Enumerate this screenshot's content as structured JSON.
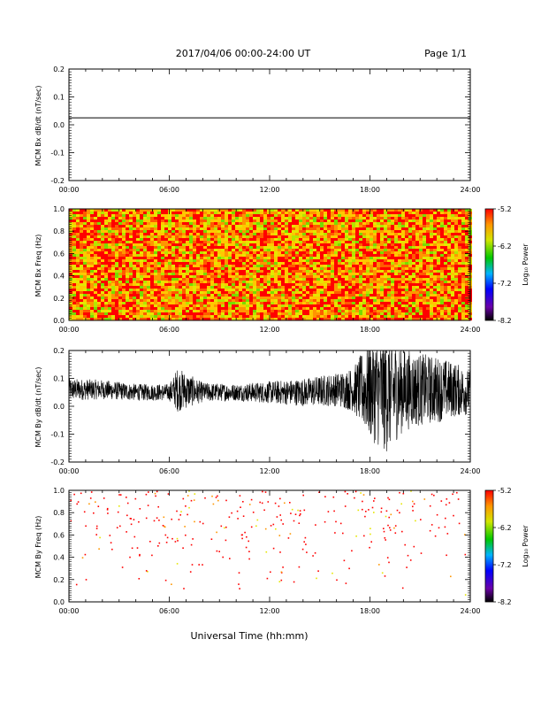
{
  "header": {
    "title": "2017/04/06  00:00-24:00 UT",
    "page": "Page 1/1"
  },
  "xlabel": "Universal Time (hh:mm)",
  "colorbar": {
    "label": "Log₁₀ Power",
    "ticks": [
      "-5.2",
      "-6.2",
      "-7.2",
      "-8.2"
    ]
  },
  "chart_data": [
    {
      "type": "line",
      "ylabel": "MCM Bx dB/dt (nT/sec)",
      "xlim": [
        0,
        24
      ],
      "ylim": [
        -0.2,
        0.2
      ],
      "xticks": [
        "00:00",
        "06:00",
        "12:00",
        "18:00",
        "24:00"
      ],
      "yticks": [
        "-0.2",
        "-0.1",
        "0.0",
        "0.1",
        "0.2"
      ],
      "series": [
        {
          "x": [
            0,
            24
          ],
          "values": [
            0.025,
            0.025
          ]
        }
      ]
    },
    {
      "type": "heatmap",
      "ylabel": "MCM Bx Freq (Hz)",
      "xlim": [
        0,
        24
      ],
      "ylim": [
        0.0,
        1.0
      ],
      "xticks": [
        "00:00",
        "06:00",
        "12:00",
        "18:00",
        "24:00"
      ],
      "yticks": [
        "0.0",
        "0.2",
        "0.4",
        "0.6",
        "0.8",
        "1.0"
      ],
      "zlim": [
        -8.2,
        -5.2
      ],
      "description_values": "dense broadband noise, power mostly between -5.2 and -6.0"
    },
    {
      "type": "line",
      "ylabel": "MCM By dB/dt (nT/sec)",
      "xlim": [
        0,
        24
      ],
      "ylim": [
        -0.2,
        0.2
      ],
      "xticks": [
        "00:00",
        "06:00",
        "12:00",
        "18:00",
        "24:00"
      ],
      "yticks": [
        "-0.2",
        "-0.1",
        "0.0",
        "0.1",
        "0.2"
      ],
      "series": [
        {
          "x": [
            0,
            2,
            4,
            6,
            6.5,
            8,
            10,
            12,
            14,
            16,
            17,
            18,
            19,
            20,
            21,
            22,
            23,
            24
          ],
          "values": [
            0.06,
            0.06,
            0.05,
            0.05,
            0.06,
            0.05,
            0.05,
            0.05,
            0.05,
            0.06,
            0.06,
            0.06,
            0.05,
            0.06,
            0.06,
            0.06,
            0.06,
            0.05
          ],
          "envelope": [
            0.04,
            0.035,
            0.03,
            0.03,
            0.08,
            0.035,
            0.03,
            0.04,
            0.05,
            0.06,
            0.08,
            0.18,
            0.22,
            0.15,
            0.13,
            0.12,
            0.1,
            0.08
          ]
        }
      ]
    },
    {
      "type": "heatmap",
      "ylabel": "MCM By Freq (Hz)",
      "xlim": [
        0,
        24
      ],
      "ylim": [
        0.0,
        1.0
      ],
      "xticks": [
        "00:00",
        "06:00",
        "12:00",
        "18:00",
        "24:00"
      ],
      "yticks": [
        "0.0",
        "0.2",
        "0.4",
        "0.6",
        "0.8",
        "1.0"
      ],
      "zlim": [
        -8.2,
        -5.2
      ],
      "description_values": "sparse scattered points, mostly above 0.6 Hz, power near -5.2"
    }
  ]
}
